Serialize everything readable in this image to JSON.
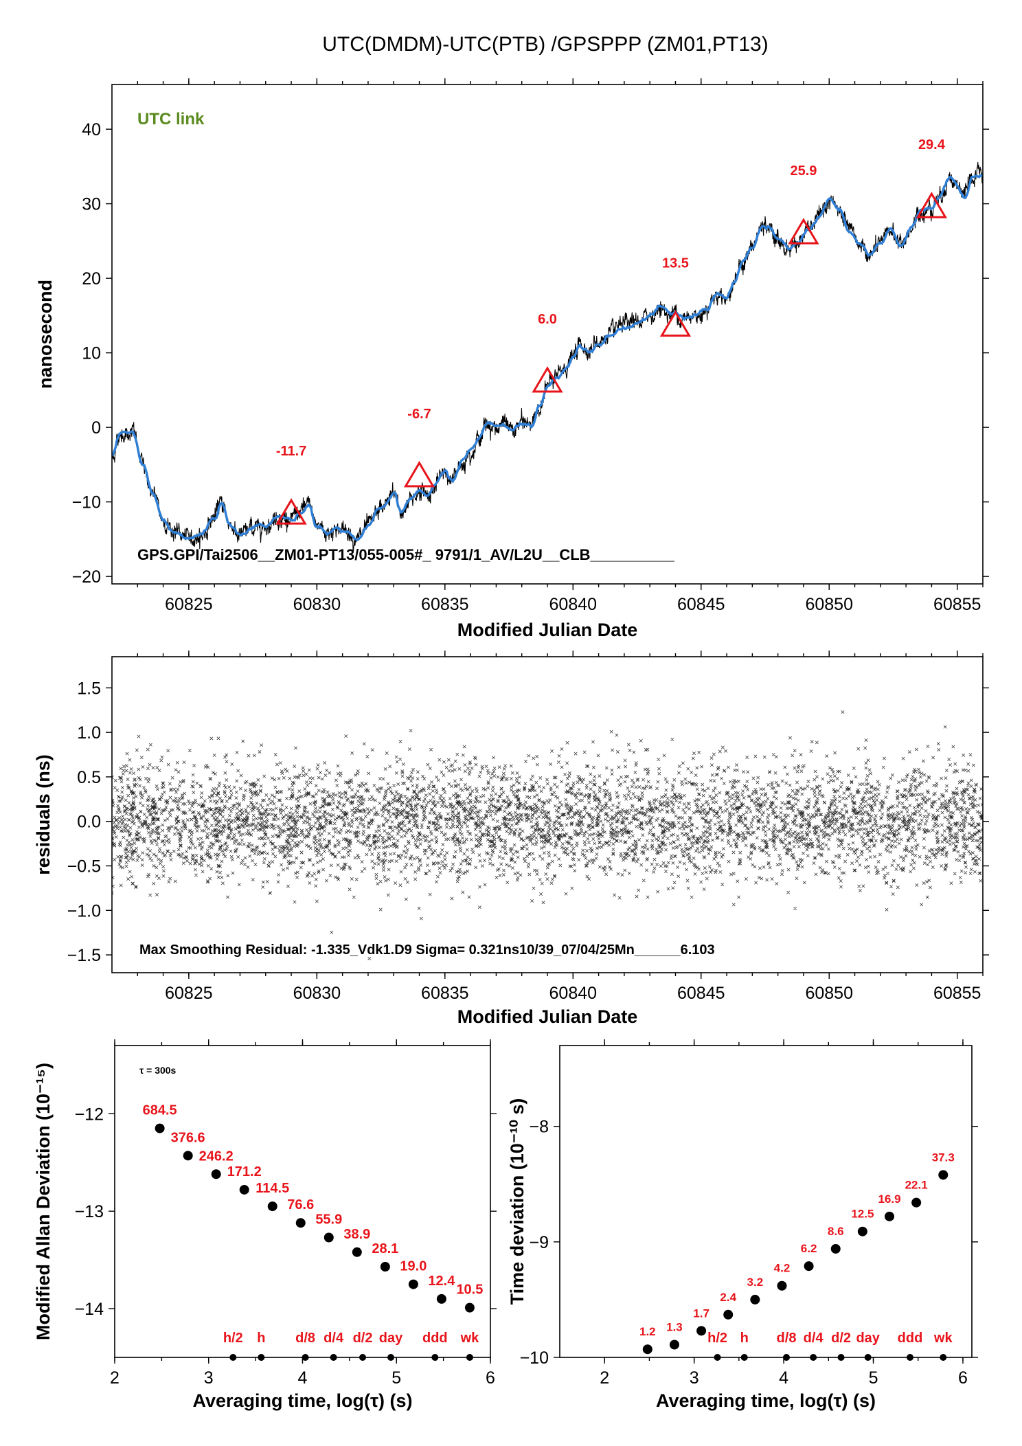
{
  "title": "UTC(DMDM)-UTC(PTB)  /GPSPPP  (ZM01,PT13)",
  "colors": {
    "accent": "#e8141b",
    "series": "#2f7fd6",
    "link": "#5a8a1e",
    "points": "#000000"
  },
  "chart_data": [
    {
      "id": "top",
      "type": "line",
      "title": "",
      "xlabel": "Modified Julian Date",
      "ylabel": "nanosecond",
      "xlim": [
        60822,
        60856
      ],
      "ylim": [
        -21,
        46
      ],
      "xticks": [
        60825,
        60830,
        60835,
        60840,
        60845,
        60850,
        60855
      ],
      "yticks": [
        -20,
        -10,
        0,
        10,
        20,
        30,
        40
      ],
      "legend_label": "UTC link",
      "info": "GPS.GPI/Tai2506__ZM01-PT13/055-005#_  9791/1_AV/L2U__CLB__________",
      "curve": [
        [
          60822.0,
          -4.0
        ],
        [
          60822.3,
          -1.0
        ],
        [
          60822.8,
          -0.5
        ],
        [
          60823.2,
          -5.0
        ],
        [
          60823.6,
          -9.0
        ],
        [
          60824.0,
          -12.5
        ],
        [
          60824.5,
          -14.0
        ],
        [
          60825.0,
          -15.0
        ],
        [
          60825.5,
          -14.5
        ],
        [
          60826.0,
          -12.0
        ],
        [
          60826.3,
          -10.0
        ],
        [
          60826.6,
          -13.0
        ],
        [
          60827.0,
          -14.5
        ],
        [
          60827.5,
          -13.5
        ],
        [
          60828.0,
          -13.0
        ],
        [
          60828.5,
          -12.0
        ],
        [
          60829.0,
          -12.5
        ],
        [
          60829.3,
          -11.5
        ],
        [
          60829.7,
          -10.5
        ],
        [
          60830.0,
          -13.0
        ],
        [
          60830.4,
          -14.0
        ],
        [
          60830.8,
          -13.5
        ],
        [
          60831.2,
          -14.0
        ],
        [
          60831.6,
          -15.0
        ],
        [
          60832.0,
          -13.5
        ],
        [
          60832.5,
          -11.0
        ],
        [
          60833.0,
          -9.0
        ],
        [
          60833.3,
          -11.5
        ],
        [
          60833.7,
          -9.5
        ],
        [
          60834.0,
          -8.5
        ],
        [
          60834.3,
          -9.0
        ],
        [
          60834.6,
          -8.0
        ],
        [
          60835.0,
          -6.0
        ],
        [
          60835.3,
          -7.0
        ],
        [
          60835.7,
          -4.5
        ],
        [
          60836.0,
          -3.0
        ],
        [
          60836.3,
          -1.5
        ],
        [
          60836.7,
          0.5
        ],
        [
          60837.0,
          0.0
        ],
        [
          60837.3,
          0.5
        ],
        [
          60837.6,
          -0.5
        ],
        [
          60838.0,
          0.5
        ],
        [
          60838.4,
          0.5
        ],
        [
          60838.7,
          3.0
        ],
        [
          60839.0,
          5.5
        ],
        [
          60839.3,
          6.5
        ],
        [
          60839.7,
          8.0
        ],
        [
          60840.0,
          9.5
        ],
        [
          60840.3,
          11.0
        ],
        [
          60840.7,
          10.5
        ],
        [
          60841.0,
          11.5
        ],
        [
          60841.5,
          12.5
        ],
        [
          60842.0,
          13.5
        ],
        [
          60842.5,
          14.0
        ],
        [
          60843.0,
          15.0
        ],
        [
          60843.4,
          16.0
        ],
        [
          60843.8,
          15.0
        ],
        [
          60844.0,
          15.5
        ],
        [
          60844.4,
          14.5
        ],
        [
          60844.8,
          15.0
        ],
        [
          60845.2,
          16.0
        ],
        [
          60845.6,
          18.0
        ],
        [
          60846.0,
          17.5
        ],
        [
          60846.3,
          19.5
        ],
        [
          60846.6,
          22.0
        ],
        [
          60847.0,
          24.0
        ],
        [
          60847.4,
          27.0
        ],
        [
          60847.7,
          26.5
        ],
        [
          60848.0,
          25.0
        ],
        [
          60848.4,
          24.0
        ],
        [
          60848.8,
          25.0
        ],
        [
          60849.2,
          26.5
        ],
        [
          60849.6,
          28.0
        ],
        [
          60850.0,
          30.5
        ],
        [
          60850.4,
          29.0
        ],
        [
          60850.8,
          26.0
        ],
        [
          60851.2,
          24.5
        ],
        [
          60851.6,
          23.0
        ],
        [
          60852.0,
          24.5
        ],
        [
          60852.4,
          26.5
        ],
        [
          60852.8,
          24.5
        ],
        [
          60853.2,
          26.5
        ],
        [
          60853.6,
          29.0
        ],
        [
          60854.0,
          29.5
        ],
        [
          60854.3,
          31.0
        ],
        [
          60854.7,
          33.5
        ],
        [
          60855.0,
          32.5
        ],
        [
          60855.3,
          31.0
        ],
        [
          60855.6,
          33.5
        ],
        [
          60856.0,
          34.0
        ]
      ],
      "markers": [
        {
          "x": 60829,
          "y": -11.7,
          "label": "-11.7"
        },
        {
          "x": 60834,
          "y": -6.7,
          "label": "-6.7"
        },
        {
          "x": 60839,
          "y": 6.0,
          "label": "6.0"
        },
        {
          "x": 60844,
          "y": 13.5,
          "label": "13.5"
        },
        {
          "x": 60849,
          "y": 25.9,
          "label": "25.9"
        },
        {
          "x": 60854,
          "y": 29.4,
          "label": "29.4"
        }
      ]
    },
    {
      "id": "mid",
      "type": "scatter",
      "title": "",
      "xlabel": "Modified Julian Date",
      "ylabel": "residuals (ns)",
      "xlim": [
        60822,
        60856
      ],
      "ylim": [
        -1.7,
        1.85
      ],
      "xticks": [
        60825,
        60830,
        60835,
        60840,
        60845,
        60850,
        60855
      ],
      "yticks": [
        -1.5,
        -1.0,
        -0.5,
        0.0,
        0.5,
        1.0,
        1.5
      ],
      "ytick_labels": [
        "−1.5",
        "−1.0",
        "−0.5",
        "0.0",
        "0.5",
        "1.0",
        "1.5"
      ],
      "sigma": 0.321,
      "info": "Max Smoothing Residual: -1.335_Vdk1.D9  Sigma= 0.321ns10/39_07/04/25Mn______6.103"
    },
    {
      "id": "mdev",
      "type": "scatter",
      "title": "",
      "xlabel": "Averaging time, log(τ) (s)",
      "ylabel": "Modified Allan Deviation (10⁻¹⁵)",
      "xlim": [
        2,
        6
      ],
      "ylim": [
        -14.5,
        -11.3
      ],
      "xticks": [
        2,
        3,
        4,
        5,
        6
      ],
      "yticks": [
        -12,
        -13,
        -14
      ],
      "tau_note": "τ = 300s",
      "points": [
        {
          "x": 2.48,
          "y": -12.15,
          "label": "684.5"
        },
        {
          "x": 2.78,
          "y": -12.43,
          "label": "376.6"
        },
        {
          "x": 3.08,
          "y": -12.62,
          "label": "246.2"
        },
        {
          "x": 3.38,
          "y": -12.78,
          "label": "171.2"
        },
        {
          "x": 3.68,
          "y": -12.95,
          "label": "114.5"
        },
        {
          "x": 3.98,
          "y": -13.12,
          "label": "76.6"
        },
        {
          "x": 4.28,
          "y": -13.27,
          "label": "55.9"
        },
        {
          "x": 4.58,
          "y": -13.42,
          "label": "38.9"
        },
        {
          "x": 4.88,
          "y": -13.57,
          "label": "28.1"
        },
        {
          "x": 5.18,
          "y": -13.75,
          "label": "19.0"
        },
        {
          "x": 5.48,
          "y": -13.9,
          "label": "12.4"
        },
        {
          "x": 5.78,
          "y": -13.99,
          "label": "10.5"
        }
      ],
      "period_marks": [
        {
          "x": 3.26,
          "label": "h/2"
        },
        {
          "x": 3.56,
          "label": "h"
        },
        {
          "x": 4.03,
          "label": "d/8"
        },
        {
          "x": 4.33,
          "label": "d/4"
        },
        {
          "x": 4.64,
          "label": "d/2"
        },
        {
          "x": 4.94,
          "label": "day"
        },
        {
          "x": 5.41,
          "label": "ddd"
        },
        {
          "x": 5.78,
          "label": "wk"
        }
      ]
    },
    {
      "id": "tdev",
      "type": "scatter",
      "title": "",
      "xlabel": "Averaging time, log(τ) (s)",
      "ylabel": "Time deviation (10⁻¹⁰ s)",
      "xlim": [
        1.5,
        6.1
      ],
      "ylim": [
        -10.0,
        -7.3
      ],
      "xticks": [
        2,
        3,
        4,
        5,
        6
      ],
      "yticks": [
        -8,
        -9,
        -10
      ],
      "points": [
        {
          "x": 2.48,
          "y": -9.93,
          "label": "1.2"
        },
        {
          "x": 2.78,
          "y": -9.89,
          "label": "1.3"
        },
        {
          "x": 3.08,
          "y": -9.77,
          "label": "1.7"
        },
        {
          "x": 3.38,
          "y": -9.63,
          "label": "2.4"
        },
        {
          "x": 3.68,
          "y": -9.5,
          "label": "3.2"
        },
        {
          "x": 3.98,
          "y": -9.38,
          "label": "4.2"
        },
        {
          "x": 4.28,
          "y": -9.21,
          "label": "6.2"
        },
        {
          "x": 4.58,
          "y": -9.06,
          "label": "8.6"
        },
        {
          "x": 4.88,
          "y": -8.91,
          "label": "12.5"
        },
        {
          "x": 5.18,
          "y": -8.78,
          "label": "16.9"
        },
        {
          "x": 5.48,
          "y": -8.66,
          "label": "22.1"
        },
        {
          "x": 5.78,
          "y": -8.42,
          "label": "37.3"
        }
      ],
      "period_marks": [
        {
          "x": 3.26,
          "label": "h/2"
        },
        {
          "x": 3.56,
          "label": "h"
        },
        {
          "x": 4.03,
          "label": "d/8"
        },
        {
          "x": 4.33,
          "label": "d/4"
        },
        {
          "x": 4.64,
          "label": "d/2"
        },
        {
          "x": 4.94,
          "label": "day"
        },
        {
          "x": 5.41,
          "label": "ddd"
        },
        {
          "x": 5.78,
          "label": "wk"
        }
      ]
    }
  ]
}
